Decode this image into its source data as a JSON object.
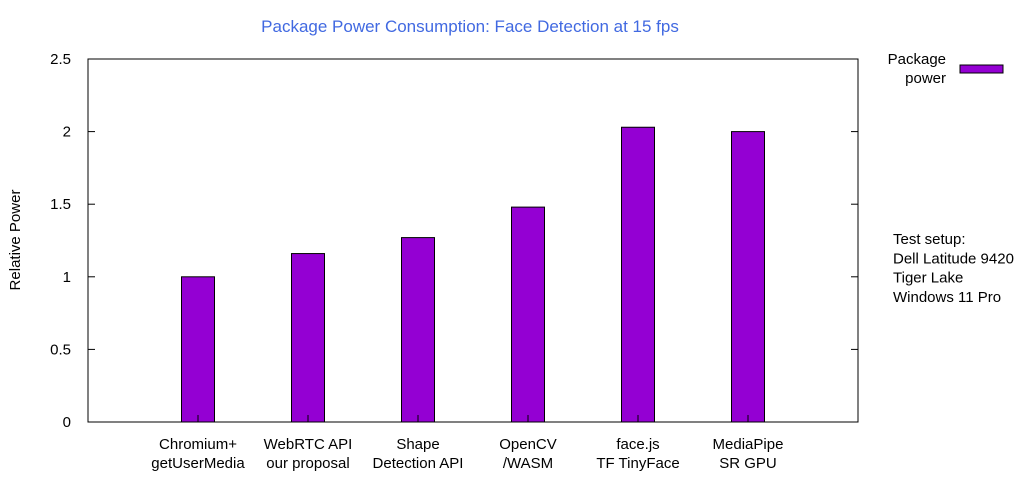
{
  "chart_data": {
    "type": "bar",
    "title": "Package Power Consumption: Face Detection at 15 fps",
    "xlabel": "",
    "ylabel": "Relative Power",
    "ylim": [
      0,
      2.5
    ],
    "yticks": [
      "0",
      "0.5",
      "1",
      "1.5",
      "2",
      "2.5"
    ],
    "categories": [
      [
        "Chromium+",
        "getUserMedia"
      ],
      [
        "WebRTC API",
        "our proposal"
      ],
      [
        "Shape",
        "Detection API"
      ],
      [
        "OpenCV",
        "/WASM"
      ],
      [
        "face.js",
        "TF TinyFace"
      ],
      [
        "MediaPipe",
        "SR GPU"
      ]
    ],
    "series": [
      {
        "name": [
          "Package",
          "power"
        ],
        "color": "#9400d3",
        "values": [
          1.0,
          1.16,
          1.27,
          1.48,
          2.03,
          2.0
        ]
      }
    ],
    "legend_position": "top-right",
    "grid": false
  },
  "note": {
    "lines": [
      "Test setup:",
      "Dell Latitude 9420",
      "Tiger Lake",
      "Windows 11 Pro"
    ]
  }
}
